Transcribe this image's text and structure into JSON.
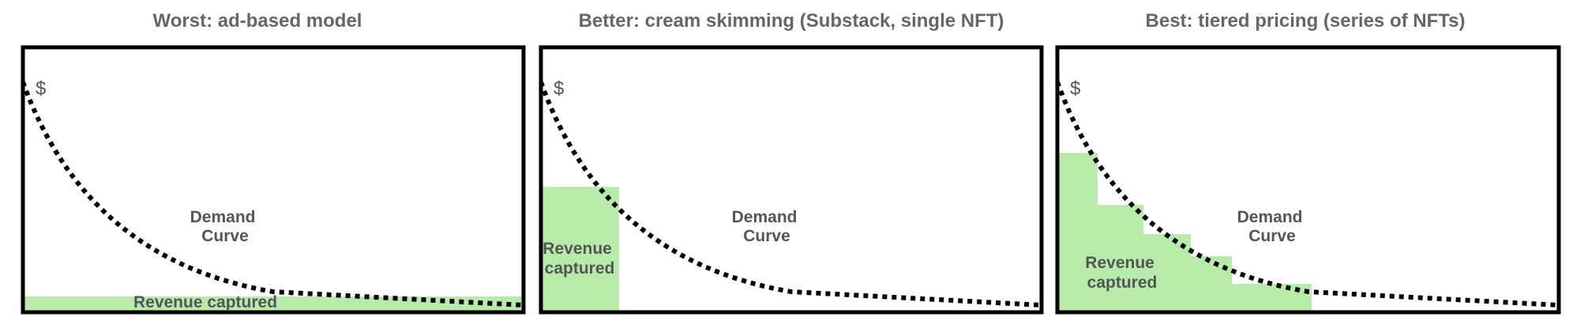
{
  "colors": {
    "frame": "#000000",
    "revenue_fill": "#b7ebaa",
    "curve": "#000000",
    "title_text": "#666666",
    "label_text": "#555555"
  },
  "panels": [
    {
      "title": "Worst: ad-based model",
      "y_axis_symbol": "$",
      "curve_label": [
        "Demand",
        "Curve"
      ],
      "revenue_label": [
        "Revenue captured"
      ],
      "revenue_shape": "flat strip"
    },
    {
      "title": "Better: cream skimming (Substack, single NFT)",
      "y_axis_symbol": "$",
      "curve_label": [
        "Demand",
        "Curve"
      ],
      "revenue_label": [
        "Revenue",
        "captured"
      ],
      "revenue_shape": "single block"
    },
    {
      "title": "Best: tiered pricing (series of NFTs)",
      "y_axis_symbol": "$",
      "curve_label": [
        "Demand",
        "Curve"
      ],
      "revenue_label": [
        "Revenue",
        "captured"
      ],
      "revenue_shape": "staircase"
    }
  ]
}
